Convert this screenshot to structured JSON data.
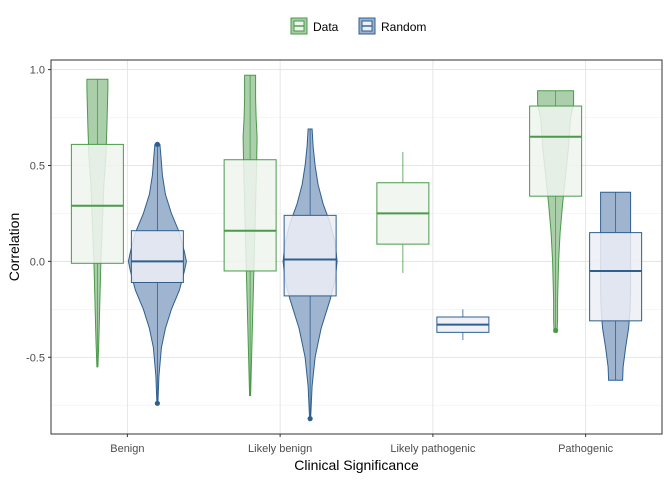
{
  "chart_data": {
    "type": "violin-boxplot",
    "xlabel": "Clinical Significance",
    "ylabel": "Correlation",
    "ylim": [
      -0.9,
      1.05
    ],
    "yticks": [
      -0.5,
      0.0,
      0.5,
      1.0
    ],
    "ytick_labels": [
      "-0.5",
      "0.0",
      "0.5",
      "1.0"
    ],
    "categories": [
      "Benign",
      "Likely benign",
      "Likely pathogenic",
      "Pathogenic"
    ],
    "grid": true,
    "legend_position": "top",
    "series": [
      {
        "name": "Data",
        "line_color": "#4a9a4a",
        "fill_color": "#a6cca6",
        "box_fill": "#eef5ee",
        "groups": [
          {
            "category": "Benign",
            "box": {
              "q1": -0.01,
              "median": 0.29,
              "q3": 0.61,
              "whisker_low": -0.55,
              "whisker_high": 0.95
            },
            "violin": {
              "min": -0.55,
              "max": 0.95,
              "profile": [
                [
                  -0.55,
                  0.5
                ],
                [
                  -0.4,
                  1.5
                ],
                [
                  -0.2,
                  2.5
                ],
                [
                  0.0,
                  3.5
                ],
                [
                  0.2,
                  5.0
                ],
                [
                  0.4,
                  6.5
                ],
                [
                  0.55,
                  8.5
                ],
                [
                  0.7,
                  9.5
                ],
                [
                  0.8,
                  10.0
                ],
                [
                  0.9,
                  10.5
                ],
                [
                  0.95,
                  10.5
                ]
              ]
            }
          },
          {
            "category": "Likely benign",
            "box": {
              "q1": -0.05,
              "median": 0.16,
              "q3": 0.53,
              "whisker_low": -0.7,
              "whisker_high": 0.97
            },
            "violin": {
              "min": -0.7,
              "max": 0.97,
              "profile": [
                [
                  -0.7,
                  0.5
                ],
                [
                  -0.5,
                  1.5
                ],
                [
                  -0.3,
                  2.5
                ],
                [
                  -0.1,
                  3.5
                ],
                [
                  0.1,
                  4.5
                ],
                [
                  0.3,
                  5.5
                ],
                [
                  0.5,
                  6.5
                ],
                [
                  0.65,
                  7.0
                ],
                [
                  0.75,
                  6.0
                ],
                [
                  0.85,
                  5.5
                ],
                [
                  0.97,
                  5.5
                ]
              ]
            }
          },
          {
            "category": "Likely pathogenic",
            "box": {
              "q1": 0.09,
              "median": 0.25,
              "q3": 0.41,
              "whisker_low": -0.06,
              "whisker_high": 0.57
            }
          },
          {
            "category": "Pathogenic",
            "box": {
              "q1": 0.34,
              "median": 0.65,
              "q3": 0.81,
              "whisker_low": -0.37,
              "whisker_high": 0.89
            },
            "violin": {
              "min": -0.37,
              "max": 0.89,
              "profile": [
                [
                  -0.37,
                  1.5
                ],
                [
                  -0.3,
                  2.0
                ],
                [
                  -0.2,
                  2.0
                ],
                [
                  -0.1,
                  2.5
                ],
                [
                  0.0,
                  3.0
                ],
                [
                  0.15,
                  4.5
                ],
                [
                  0.3,
                  7.0
                ],
                [
                  0.45,
                  10.0
                ],
                [
                  0.6,
                  13.0
                ],
                [
                  0.75,
                  15.0
                ],
                [
                  0.82,
                  18.0
                ],
                [
                  0.89,
                  18.0
                ]
              ]
            },
            "outliers": [
              -0.36
            ]
          }
        ]
      },
      {
        "name": "Random",
        "line_color": "#2f5f8f",
        "fill_color": "#9ab0cc",
        "box_fill": "#eceff6",
        "groups": [
          {
            "category": "Benign",
            "box": {
              "q1": -0.11,
              "median": 0.0,
              "q3": 0.16,
              "whisker_low": -0.74,
              "whisker_high": 0.61
            },
            "violin": {
              "min": -0.74,
              "max": 0.61,
              "profile": [
                [
                  -0.74,
                  0.5
                ],
                [
                  -0.6,
                  1.5
                ],
                [
                  -0.45,
                  4.0
                ],
                [
                  -0.35,
                  8.0
                ],
                [
                  -0.25,
                  14.0
                ],
                [
                  -0.15,
                  22.0
                ],
                [
                  -0.05,
                  27.0
                ],
                [
                  0.0,
                  29.0
                ],
                [
                  0.05,
                  27.0
                ],
                [
                  0.15,
                  22.0
                ],
                [
                  0.25,
                  14.0
                ],
                [
                  0.35,
                  8.0
                ],
                [
                  0.45,
                  5.0
                ],
                [
                  0.55,
                  3.5
                ],
                [
                  0.61,
                  2.5
                ]
              ]
            },
            "outliers": [
              -0.74,
              0.61
            ]
          },
          {
            "category": "Likely benign",
            "box": {
              "q1": -0.18,
              "median": 0.01,
              "q3": 0.24,
              "whisker_low": -0.82,
              "whisker_high": 0.69
            },
            "violin": {
              "min": -0.82,
              "max": 0.69,
              "profile": [
                [
                  -0.82,
                  0.5
                ],
                [
                  -0.65,
                  2.0
                ],
                [
                  -0.5,
                  5.0
                ],
                [
                  -0.35,
                  11.0
                ],
                [
                  -0.2,
                  20.0
                ],
                [
                  -0.1,
                  25.0
                ],
                [
                  0.0,
                  27.0
                ],
                [
                  0.1,
                  25.0
                ],
                [
                  0.2,
                  20.0
                ],
                [
                  0.3,
                  13.0
                ],
                [
                  0.4,
                  8.0
                ],
                [
                  0.5,
                  5.0
                ],
                [
                  0.6,
                  3.0
                ],
                [
                  0.69,
                  2.0
                ]
              ]
            },
            "outliers": [
              -0.82
            ]
          },
          {
            "category": "Likely pathogenic",
            "box": {
              "q1": -0.37,
              "median": -0.33,
              "q3": -0.29,
              "whisker_low": -0.41,
              "whisker_high": -0.25
            }
          },
          {
            "category": "Pathogenic",
            "box": {
              "q1": -0.31,
              "median": -0.05,
              "q3": 0.15,
              "whisker_low": -0.62,
              "whisker_high": 0.36
            },
            "violin": {
              "min": -0.62,
              "max": 0.36,
              "profile": [
                [
                  -0.62,
                  7.0
                ],
                [
                  -0.55,
                  7.5
                ],
                [
                  -0.45,
                  10.0
                ],
                [
                  -0.35,
                  13.0
                ],
                [
                  -0.25,
                  14.5
                ],
                [
                  -0.15,
                  15.0
                ],
                [
                  -0.05,
                  15.0
                ],
                [
                  0.05,
                  15.0
                ],
                [
                  0.15,
                  15.0
                ],
                [
                  0.25,
                  15.0
                ],
                [
                  0.36,
                  15.0
                ]
              ]
            }
          }
        ]
      }
    ]
  }
}
